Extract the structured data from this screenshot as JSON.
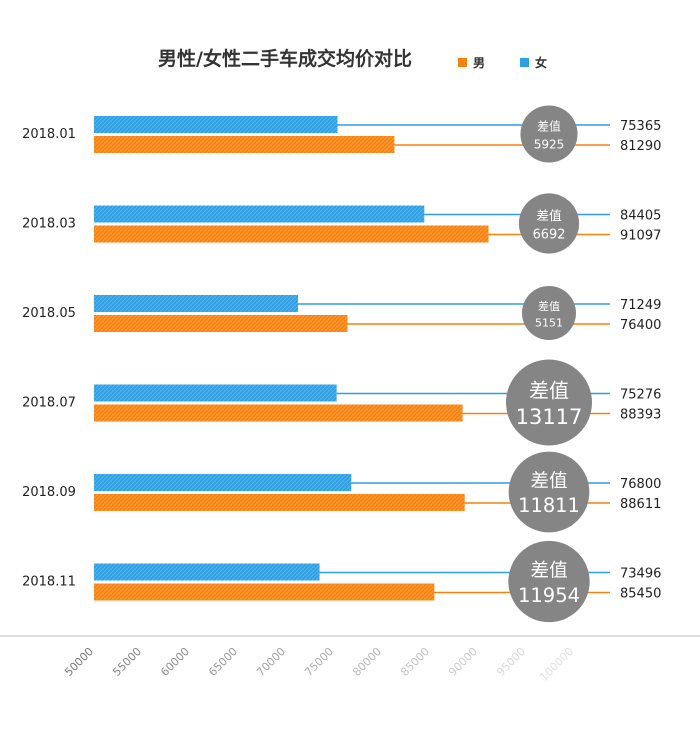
{
  "chart_data": {
    "type": "bar",
    "orientation": "horizontal",
    "title": "男性/女性二手车成交均价对比",
    "categories": [
      "2018.01",
      "2018.03",
      "2018.05",
      "2018.07",
      "2018.09",
      "2018.11"
    ],
    "series": [
      {
        "name": "女",
        "color": "#2d9fe2",
        "values": [
          75365,
          84405,
          71249,
          75276,
          76800,
          73496
        ]
      },
      {
        "name": "男",
        "color": "#f5820f",
        "values": [
          81290,
          91097,
          76400,
          88393,
          88611,
          85450
        ]
      }
    ],
    "legend_order": [
      "男",
      "女"
    ],
    "legend_position": "top-right",
    "difference": {
      "label": "差值",
      "values": [
        5925,
        6692,
        5151,
        13117,
        11811,
        11954
      ],
      "bubble_color": "#858585"
    },
    "xticks": [
      50000,
      55000,
      60000,
      65000,
      70000,
      75000,
      80000,
      85000,
      90000,
      95000,
      100000
    ],
    "xlim": [
      50000,
      100000
    ],
    "grid": false
  }
}
